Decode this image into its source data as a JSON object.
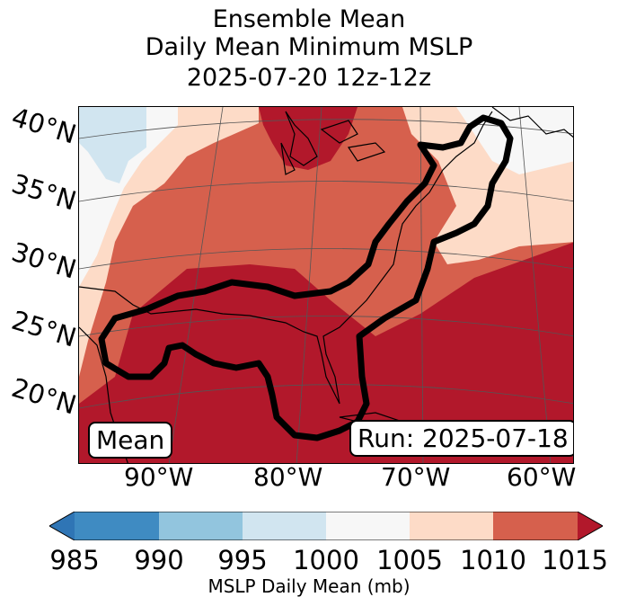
{
  "title": {
    "line1": "Ensemble Mean",
    "line2": "Daily Mean Minimum MSLP",
    "line3": "2025-07-20 12z-12z"
  },
  "lat_labels": [
    "40°N",
    "35°N",
    "30°N",
    "25°N",
    "20°N"
  ],
  "lon_labels": [
    "90°W",
    "80°W",
    "70°W",
    "60°W"
  ],
  "badges": {
    "left": "Mean",
    "right": "Run: 2025-07-18"
  },
  "colorbar": {
    "ticks": [
      "985",
      "990",
      "995",
      "1000",
      "1005",
      "1010",
      "1015"
    ],
    "label": "MSLP Daily Mean (mb)",
    "colors": [
      "#2f75b5",
      "#3f8bc2",
      "#92c5de",
      "#d1e5f0",
      "#f7f7f7",
      "#fddbc7",
      "#d6604d",
      "#b2182b"
    ]
  },
  "map_colors": {
    "ocean_low": "#b2182b",
    "mid": "#d6604d",
    "light": "#fddbc7",
    "white": "#f7f7f7",
    "blue": "#d1e5f0",
    "contour": "#000000"
  }
}
